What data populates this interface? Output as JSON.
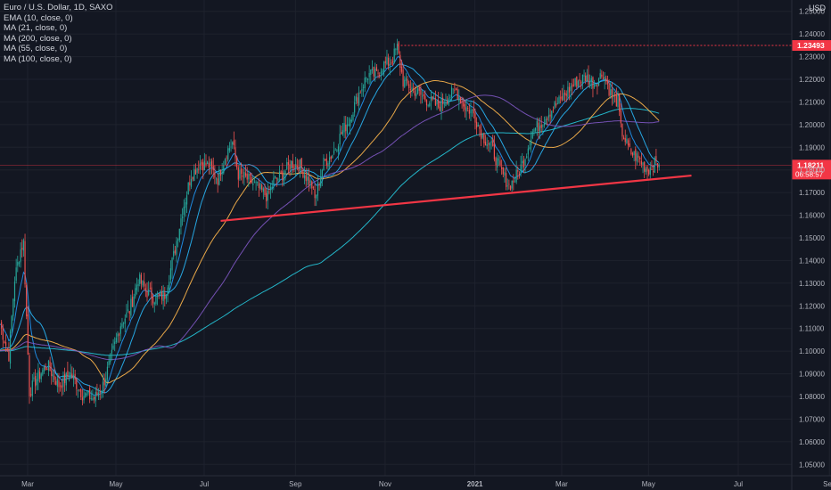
{
  "symbol_title": "Euro / U.S. Dollar, 1D, SAXO",
  "currency": "USD",
  "indicators": [
    {
      "label": "EMA (10, close, 0)",
      "color": "#2196f3"
    },
    {
      "label": "MA (21, close, 0)",
      "color": "#29b6f6"
    },
    {
      "label": "MA (200, close, 0)",
      "color": "#26c6da"
    },
    {
      "label": "MA (55, close, 0)",
      "color": "#ffb74d"
    },
    {
      "label": "MA (100, close, 0)",
      "color": "#7e57c2"
    }
  ],
  "last_price": "1.18211",
  "countdown": "06:58:57",
  "high_marker": "1.23493",
  "colors": {
    "up": "#26a69a",
    "down": "#ef5350",
    "trendline": "#f23645",
    "price_tag": "#f23645",
    "background": "#131722"
  },
  "chart_data": {
    "type": "candlestick",
    "title": "Euro / U.S. Dollar, 1D, SAXO",
    "ylim": [
      1.045,
      1.255
    ],
    "y_ticks": [
      "1.05000",
      "1.06000",
      "1.07000",
      "1.08000",
      "1.09000",
      "1.10000",
      "1.11000",
      "1.12000",
      "1.13000",
      "1.14000",
      "1.15000",
      "1.16000",
      "1.17000",
      "1.18000",
      "1.19000",
      "1.20000",
      "1.21000",
      "1.22000",
      "1.23000",
      "1.24000",
      "1.25000"
    ],
    "x_ticks": [
      "Mar",
      "May",
      "Jul",
      "Sep",
      "Nov",
      "2021",
      "Mar",
      "May",
      "Jul",
      "Sep"
    ],
    "price_path": [
      [
        0,
        1.112
      ],
      [
        6,
        1.098
      ],
      [
        10,
        1.132
      ],
      [
        14,
        1.145
      ],
      [
        16,
        1.148
      ],
      [
        20,
        1.082
      ],
      [
        25,
        1.088
      ],
      [
        32,
        1.094
      ],
      [
        40,
        1.085
      ],
      [
        48,
        1.09
      ],
      [
        56,
        1.081
      ],
      [
        64,
        1.079
      ],
      [
        70,
        1.085
      ],
      [
        76,
        1.098
      ],
      [
        82,
        1.112
      ],
      [
        88,
        1.118
      ],
      [
        94,
        1.132
      ],
      [
        100,
        1.126
      ],
      [
        106,
        1.123
      ],
      [
        112,
        1.125
      ],
      [
        118,
        1.142
      ],
      [
        124,
        1.162
      ],
      [
        130,
        1.178
      ],
      [
        136,
        1.183
      ],
      [
        142,
        1.182
      ],
      [
        148,
        1.176
      ],
      [
        154,
        1.188
      ],
      [
        158,
        1.192
      ],
      [
        162,
        1.178
      ],
      [
        168,
        1.176
      ],
      [
        174,
        1.173
      ],
      [
        182,
        1.168
      ],
      [
        186,
        1.175
      ],
      [
        192,
        1.178
      ],
      [
        198,
        1.183
      ],
      [
        204,
        1.182
      ],
      [
        208,
        1.177
      ],
      [
        212,
        1.173
      ],
      [
        214,
        1.167
      ],
      [
        220,
        1.183
      ],
      [
        226,
        1.187
      ],
      [
        232,
        1.196
      ],
      [
        238,
        1.203
      ],
      [
        244,
        1.214
      ],
      [
        250,
        1.222
      ],
      [
        256,
        1.222
      ],
      [
        260,
        1.226
      ],
      [
        266,
        1.228
      ],
      [
        270,
        1.234
      ],
      [
        274,
        1.219
      ],
      [
        282,
        1.215
      ],
      [
        290,
        1.211
      ],
      [
        298,
        1.208
      ],
      [
        304,
        1.212
      ],
      [
        310,
        1.215
      ],
      [
        316,
        1.208
      ],
      [
        322,
        1.205
      ],
      [
        328,
        1.195
      ],
      [
        334,
        1.19
      ],
      [
        340,
        1.18
      ],
      [
        346,
        1.173
      ],
      [
        350,
        1.176
      ],
      [
        356,
        1.184
      ],
      [
        362,
        1.197
      ],
      [
        368,
        1.201
      ],
      [
        374,
        1.206
      ],
      [
        380,
        1.21
      ],
      [
        386,
        1.215
      ],
      [
        392,
        1.219
      ],
      [
        398,
        1.221
      ],
      [
        404,
        1.218
      ],
      [
        410,
        1.223
      ],
      [
        416,
        1.212
      ],
      [
        420,
        1.21
      ],
      [
        422,
        1.198
      ],
      [
        428,
        1.188
      ],
      [
        434,
        1.185
      ],
      [
        440,
        1.18
      ],
      [
        446,
        1.183
      ],
      [
        448,
        1.1821
      ]
    ],
    "high_line": 1.23493,
    "last_close": 1.18211,
    "trendline": {
      "start": {
        "day": 150,
        "price": 1.1575
      },
      "end": {
        "day": 470,
        "price": 1.1775
      }
    },
    "series": [
      {
        "name": "EMA (10, close, 0)",
        "color": "#2196f3",
        "period": 10,
        "kind": "ema"
      },
      {
        "name": "MA (21, close, 0)",
        "color": "#29b6f6",
        "period": 21,
        "kind": "sma"
      },
      {
        "name": "MA (200, close, 0)",
        "color": "#26c6da",
        "period": 200,
        "kind": "sma"
      },
      {
        "name": "MA (55, close, 0)",
        "color": "#ffb74d",
        "period": 55,
        "kind": "sma"
      },
      {
        "name": "MA (100, close, 0)",
        "color": "#7e57c2",
        "period": 100,
        "kind": "sma"
      }
    ],
    "grid": "on",
    "legend_position": "top-left"
  }
}
